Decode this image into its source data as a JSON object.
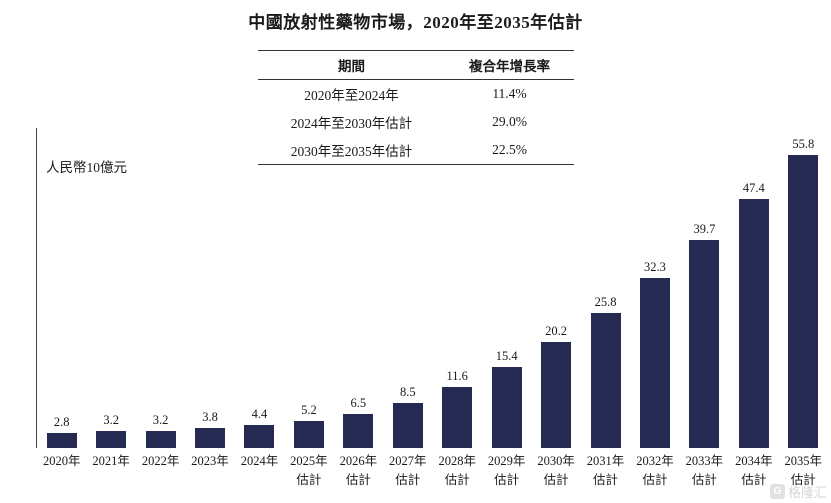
{
  "title": "中國放射性藥物市場，2020年至2035年估計",
  "table": {
    "headers": [
      "期間",
      "複合年增長率"
    ],
    "rows": [
      [
        "2020年至2024年",
        "11.4%"
      ],
      [
        "2024年至2030年估計",
        "29.0%"
      ],
      [
        "2030年至2035年估計",
        "22.5%"
      ]
    ]
  },
  "chart_data": {
    "type": "bar",
    "title": "中國放射性藥物市場，2020年至2035年估計",
    "ylabel": "人民幣10億元",
    "xlabel": "",
    "categories": [
      "2020年",
      "2021年",
      "2022年",
      "2023年",
      "2024年",
      "2025年估計",
      "2026年估計",
      "2027年估計",
      "2028年估計",
      "2029年估計",
      "2030年估計",
      "2031年估計",
      "2032年估計",
      "2033年估計",
      "2034年估計",
      "2035年估計"
    ],
    "values": [
      2.8,
      3.2,
      3.2,
      3.8,
      4.4,
      5.2,
      6.5,
      8.5,
      11.6,
      15.4,
      20.2,
      25.8,
      32.3,
      39.7,
      47.4,
      55.8
    ],
    "bar_color": "#252a52",
    "axis_color": "#444444",
    "ylim": [
      0,
      60
    ],
    "grid": false,
    "legend": "none",
    "data_labels": true
  },
  "watermark": {
    "text": "格隆汇",
    "icon_glyph": "G"
  }
}
